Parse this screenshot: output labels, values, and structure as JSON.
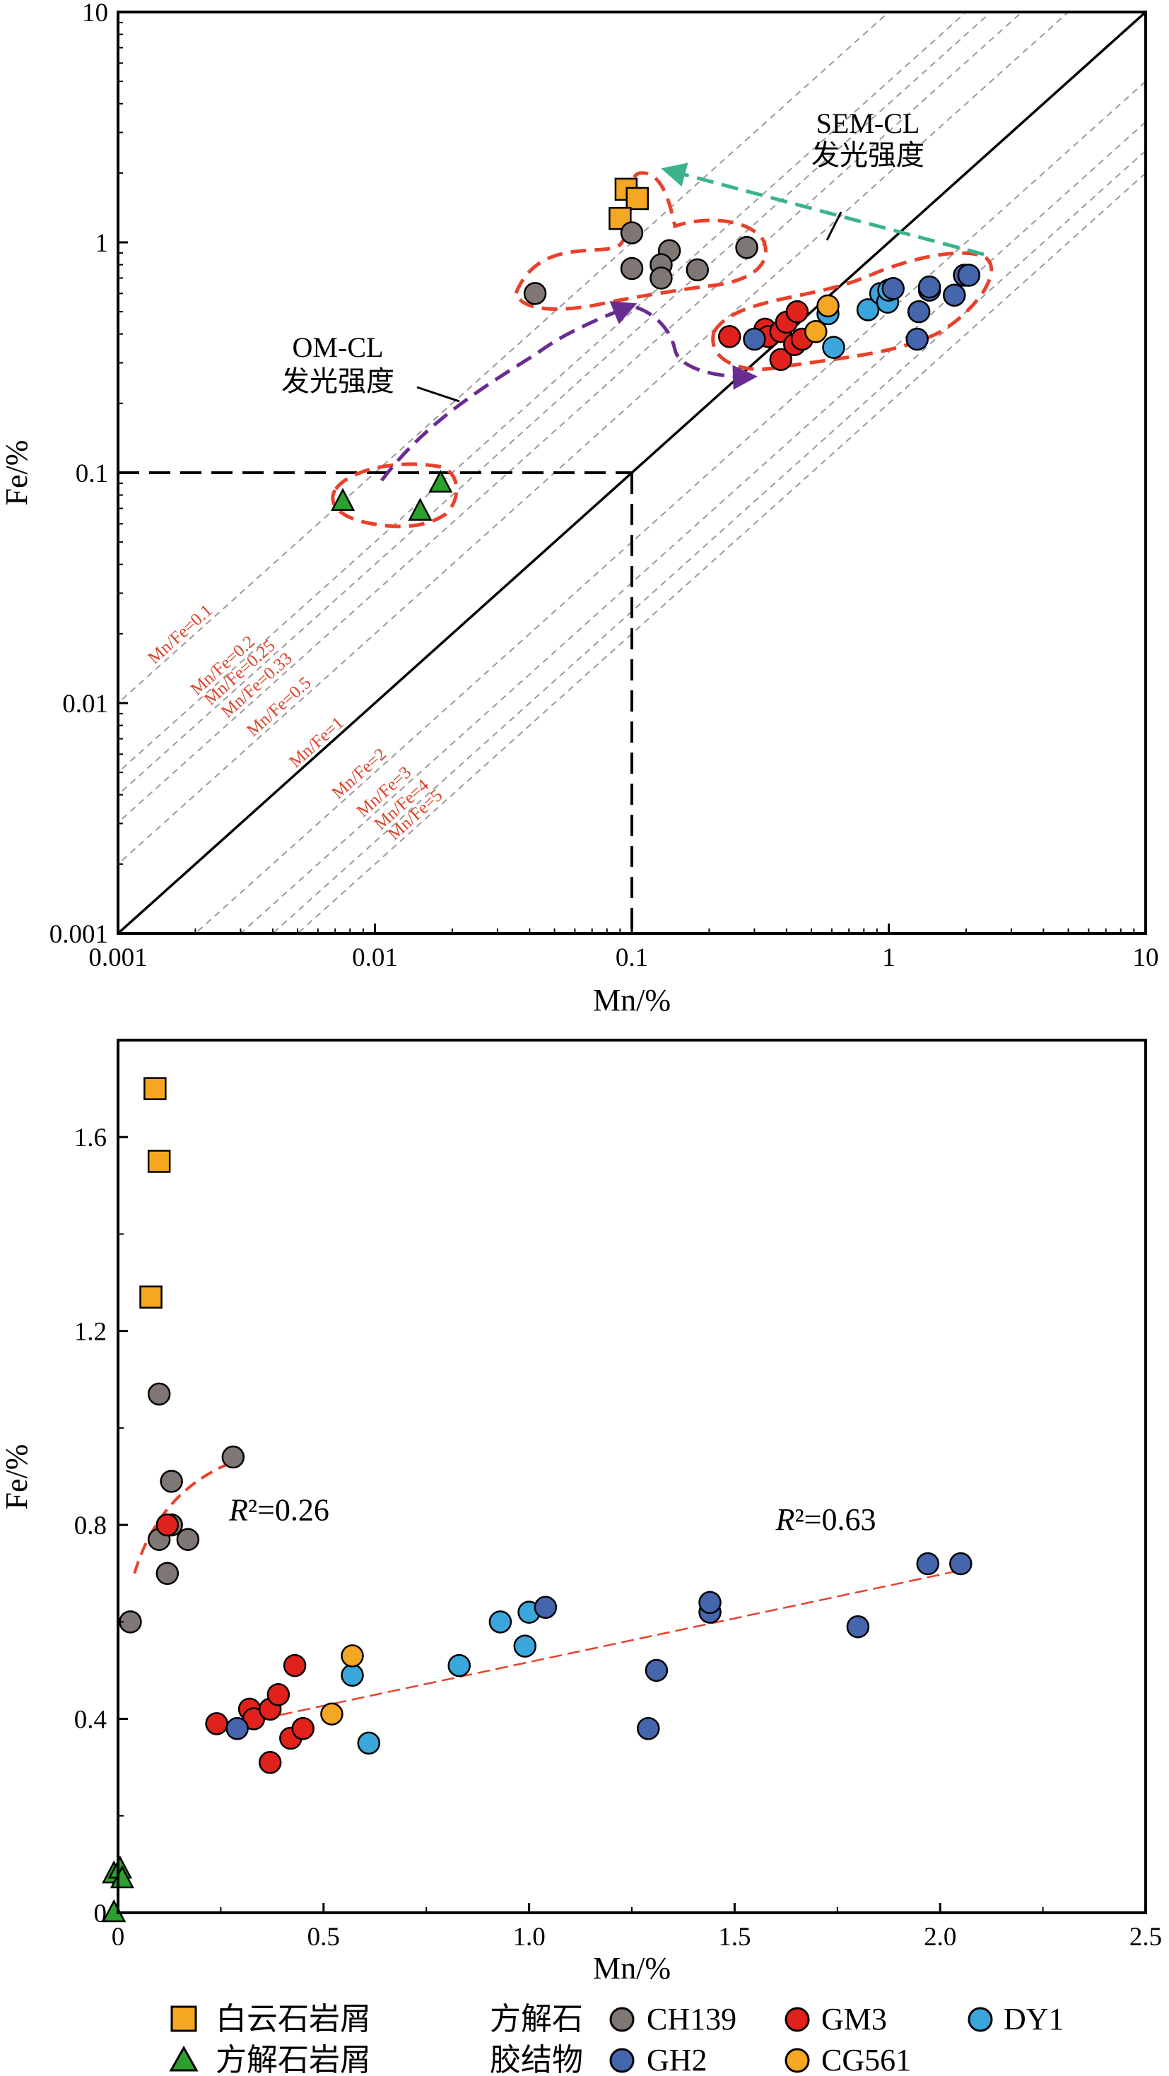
{
  "chart_data": [
    {
      "type": "scatter",
      "scale": "log-log",
      "xlabel": "Mn/%",
      "ylabel": "Fe/%",
      "xlim": [
        0.001,
        10
      ],
      "ylim": [
        0.001,
        10
      ],
      "xticks": [
        "0.001",
        "0.01",
        "0.1",
        "1",
        "10"
      ],
      "yticks": [
        "0.001",
        "0.01",
        "0.1",
        "1",
        "10"
      ],
      "ratio_lines": [
        "Mn/Fe=0.1",
        "Mn/Fe=0.2",
        "Mn/Fe=0.25",
        "Mn/Fe=0.33",
        "Mn/Fe=0.5",
        "Mn/Fe=1",
        "Mn/Fe=2",
        "Mn/Fe=3",
        "Mn/Fe=4",
        "Mn/Fe=5"
      ],
      "annotations": {
        "om_cl_line1": "OM-CL",
        "om_cl_line2": "发光强度",
        "sem_cl_line1": "SEM-CL",
        "sem_cl_line2": "发光强度"
      },
      "series": [
        {
          "name": "白云石岩屑",
          "marker": "square",
          "color": "#f5a623",
          "points": [
            [
              0.095,
              1.7
            ],
            [
              0.105,
              1.55
            ],
            [
              0.09,
              1.27
            ]
          ]
        },
        {
          "name": "方解石岩屑",
          "marker": "triangle",
          "color": "#2ca02c",
          "points": [
            [
              0.0075,
              0.075
            ],
            [
              0.015,
              0.068
            ],
            [
              0.018,
              0.09
            ]
          ]
        },
        {
          "name": "CH139",
          "marker": "circle",
          "color": "#7f7773",
          "points": [
            [
              0.042,
              0.6
            ],
            [
              0.1,
              1.1
            ],
            [
              0.14,
              0.92
            ],
            [
              0.13,
              0.8
            ],
            [
              0.1,
              0.77
            ],
            [
              0.13,
              0.7
            ],
            [
              0.18,
              0.76
            ],
            [
              0.28,
              0.95
            ]
          ]
        },
        {
          "name": "GM3",
          "marker": "circle",
          "color": "#e0211c",
          "points": [
            [
              0.24,
              0.39
            ],
            [
              0.33,
              0.42
            ],
            [
              0.34,
              0.39
            ],
            [
              0.38,
              0.41
            ],
            [
              0.4,
              0.45
            ],
            [
              0.44,
              0.5
            ],
            [
              0.38,
              0.31
            ],
            [
              0.43,
              0.36
            ],
            [
              0.46,
              0.38
            ]
          ]
        },
        {
          "name": "DY1",
          "marker": "circle",
          "color": "#3aa6dc",
          "points": [
            [
              0.58,
              0.49
            ],
            [
              0.61,
              0.35
            ],
            [
              0.83,
              0.51
            ],
            [
              0.93,
              0.6
            ],
            [
              0.99,
              0.55
            ],
            [
              1.0,
              0.62
            ]
          ]
        },
        {
          "name": "GH2",
          "marker": "circle",
          "color": "#4565ad",
          "points": [
            [
              0.3,
              0.38
            ],
            [
              1.04,
              0.63
            ],
            [
              1.29,
              0.38
            ],
            [
              1.31,
              0.5
            ],
            [
              1.44,
              0.62
            ],
            [
              1.44,
              0.64
            ],
            [
              1.8,
              0.59
            ],
            [
              1.97,
              0.72
            ],
            [
              2.05,
              0.72
            ]
          ]
        },
        {
          "name": "CG561",
          "marker": "circle",
          "color": "#f5a623",
          "points": [
            [
              0.52,
              0.41
            ],
            [
              0.58,
              0.53
            ]
          ]
        }
      ]
    },
    {
      "type": "scatter",
      "xlabel": "Mn/%",
      "ylabel": "Fe/%",
      "xlim": [
        0,
        2.5
      ],
      "ylim": [
        0,
        1.8
      ],
      "xticks": [
        "0",
        "0.5",
        "1.0",
        "1.5",
        "2.0",
        "2.5"
      ],
      "yticks": [
        "0",
        "0.4",
        "0.8",
        "1.2",
        "1.6"
      ],
      "trendlines": [
        {
          "label_var": "R",
          "label_rest": "²=0.26",
          "from": [
            0.04,
            0.7
          ],
          "to": [
            0.28,
            0.93
          ]
        },
        {
          "label_var": "R",
          "label_rest": "²=0.63",
          "from": [
            0.35,
            0.4
          ],
          "to": [
            2.07,
            0.71
          ]
        }
      ],
      "series": [
        {
          "name": "白云石岩屑",
          "marker": "square",
          "color": "#f5a623",
          "points": [
            [
              0.09,
              1.7
            ],
            [
              0.1,
              1.55
            ],
            [
              0.08,
              1.27
            ]
          ]
        },
        {
          "name": "方解石岩屑",
          "marker": "triangle",
          "color": "#2ca02c",
          "points": [
            [
              -0.01,
              0.08
            ],
            [
              0.005,
              0.09
            ],
            [
              0.01,
              0.07
            ],
            [
              -0.01,
              0.0
            ]
          ]
        },
        {
          "name": "CH139",
          "marker": "circle",
          "color": "#7f7773",
          "points": [
            [
              0.03,
              0.6
            ],
            [
              0.1,
              1.07
            ],
            [
              0.28,
              0.94
            ],
            [
              0.13,
              0.89
            ],
            [
              0.1,
              0.77
            ],
            [
              0.13,
              0.8
            ],
            [
              0.17,
              0.77
            ],
            [
              0.12,
              0.7
            ]
          ]
        },
        {
          "name": "GM3",
          "marker": "circle",
          "color": "#e0211c",
          "points": [
            [
              0.24,
              0.39
            ],
            [
              0.32,
              0.42
            ],
            [
              0.33,
              0.4
            ],
            [
              0.37,
              0.42
            ],
            [
              0.39,
              0.45
            ],
            [
              0.43,
              0.51
            ],
            [
              0.37,
              0.31
            ],
            [
              0.42,
              0.36
            ],
            [
              0.45,
              0.38
            ],
            [
              0.12,
              0.8
            ]
          ]
        },
        {
          "name": "DY1",
          "marker": "circle",
          "color": "#3aa6dc",
          "points": [
            [
              0.57,
              0.49
            ],
            [
              0.61,
              0.35
            ],
            [
              0.83,
              0.51
            ],
            [
              0.93,
              0.6
            ],
            [
              0.99,
              0.55
            ],
            [
              1.0,
              0.62
            ]
          ]
        },
        {
          "name": "GH2",
          "marker": "circle",
          "color": "#4565ad",
          "points": [
            [
              0.29,
              0.38
            ],
            [
              1.04,
              0.63
            ],
            [
              1.29,
              0.38
            ],
            [
              1.31,
              0.5
            ],
            [
              1.44,
              0.62
            ],
            [
              1.44,
              0.64
            ],
            [
              1.8,
              0.59
            ],
            [
              1.97,
              0.72
            ],
            [
              2.05,
              0.72
            ]
          ]
        },
        {
          "name": "CG561",
          "marker": "circle",
          "color": "#f5a623",
          "points": [
            [
              0.52,
              0.41
            ],
            [
              0.57,
              0.53
            ]
          ]
        }
      ]
    }
  ],
  "legend": {
    "dolomite_label": "白云石岩屑",
    "calcite_debris_label": "方解石岩屑",
    "cement_label_line1": "方解石",
    "cement_label_line2": "胶结物",
    "ch139": "CH139",
    "gm3": "GM3",
    "dy1": "DY1",
    "gh2": "GH2",
    "cg561": "CG561",
    "colors": {
      "dolomite": "#f5a623",
      "calcite": "#2ca02c",
      "ch139": "#7f7773",
      "gm3": "#e0211c",
      "dy1": "#3aa6dc",
      "gh2": "#4565ad",
      "cg561": "#f5a623"
    }
  },
  "style_colors": {
    "envelope": "#e8412c",
    "om_arrow": "#6a2c91",
    "sem_arrow": "#3ab38c",
    "ratio_line": "#9a9a9a"
  }
}
